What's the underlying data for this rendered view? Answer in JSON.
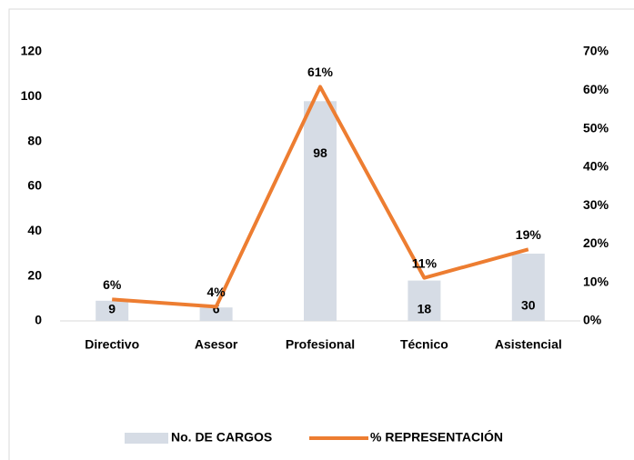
{
  "chart_data": {
    "type": "bar-line",
    "categories": [
      "Directivo",
      "Asesor",
      "Profesional",
      "Técnico",
      "Asistencial"
    ],
    "series": [
      {
        "name": "No. DE CARGOS",
        "color": "#d6dce5",
        "values": [
          9,
          6,
          98,
          18,
          30
        ]
      },
      {
        "name": "% REPRESENTACIÓN",
        "color": "#ed7d31",
        "axis": "y2",
        "values": [
          5.6,
          3.7,
          60.9,
          11.2,
          18.6
        ],
        "value_labels": [
          "6%",
          "4%",
          "61%",
          "11%",
          "19%"
        ]
      }
    ],
    "ylim": [
      0,
      120
    ],
    "yticks": [
      0,
      20,
      40,
      60,
      80,
      100,
      120
    ],
    "y2lim": [
      0,
      70
    ],
    "y2ticks": [
      {
        "value": 0,
        "label": "0%"
      },
      {
        "value": 10,
        "label": "10%"
      },
      {
        "value": 20,
        "label": "20%"
      },
      {
        "value": 30,
        "label": "30%"
      },
      {
        "value": 40,
        "label": "40%"
      },
      {
        "value": 50,
        "label": "50%"
      },
      {
        "value": 60,
        "label": "60%"
      },
      {
        "value": 70,
        "label": "70%"
      }
    ],
    "legend": "bottom"
  }
}
